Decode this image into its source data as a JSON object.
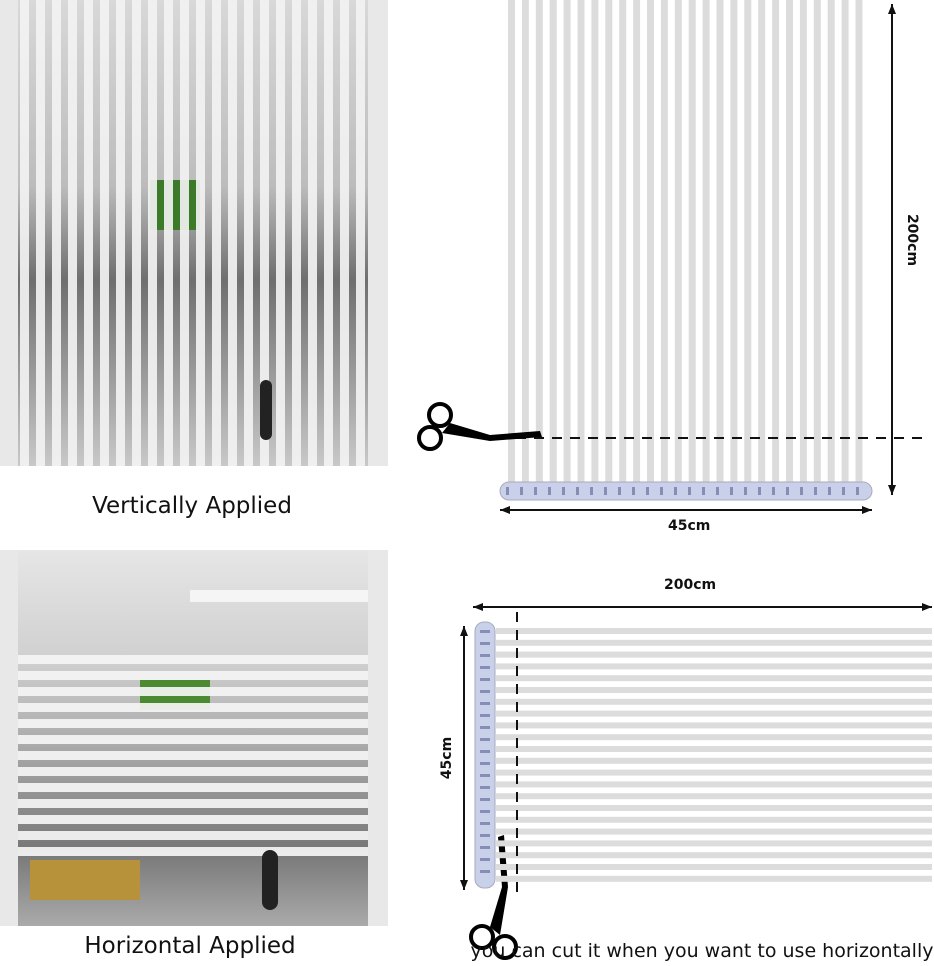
{
  "vertical_section": {
    "caption": "Vertically Applied",
    "height_label": "200cm",
    "width_label": "45cm"
  },
  "horizontal_section": {
    "caption": "Horizontal Applied",
    "length_label": "200cm",
    "width_label": "45cm",
    "note": "you can cut it when you want to use horizontally"
  },
  "colors": {
    "stripe": "#dcdcdc",
    "roll": "#c9d0ea",
    "line": "#111111"
  },
  "icons": [
    "scissors-icon",
    "double-arrow-icon",
    "dashed-cut-line"
  ]
}
